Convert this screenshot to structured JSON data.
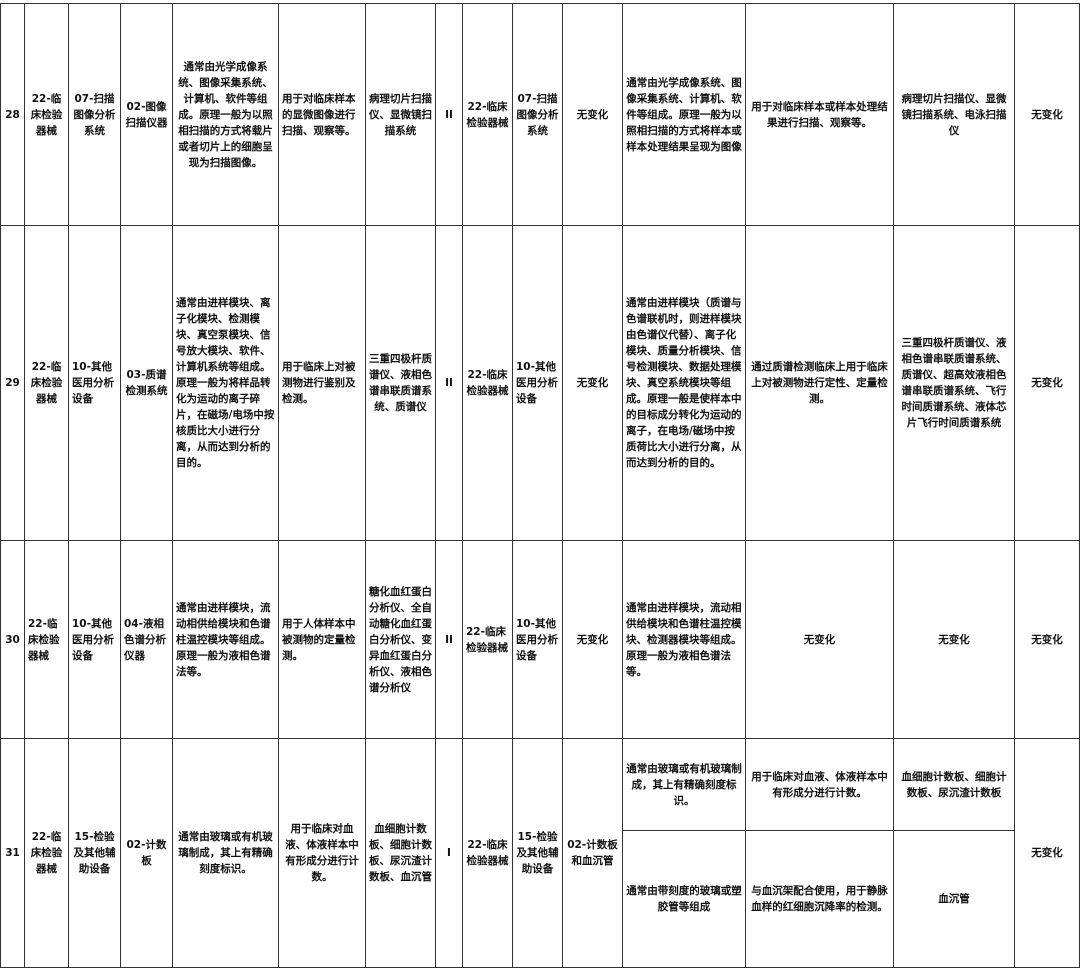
{
  "rows": [
    {
      "no": "28",
      "cat": "22-临床检验器械",
      "sub": "07-扫描图像分析系统",
      "item": "02-图像扫描仪器",
      "desc": "通常由光学成像系统、图像采集系统、计算机、软件等组成。原理一般为以照相扫描的方式将载片或者切片上的细胞呈现为扫描图像。",
      "use": "用于对临床样本的显微图像进行扫描、观察等。",
      "examples": "病理切片扫描仪、显微镜扫描系统",
      "class": "II",
      "new_cat": "22-临床检验器械",
      "new_sub": "07-扫描图像分析系统",
      "new_item": "无变化",
      "new_desc": "通常由光学成像系统、图像采集系统、计算机、软件等组成。原理一般为以照相扫描的方式将样本或样本处理结果呈现为图像",
      "new_use": "用于对临床样本或样本处理结果进行扫描、观察等。",
      "new_examples": "病理切片扫描仪、显微镜扫描系统、电泳扫描仪",
      "new_class": "无变化"
    },
    {
      "no": "29",
      "cat": "22-临床检验器械",
      "sub": "10-其他医用分析设备",
      "item": "03-质谱检测系统",
      "desc": "通常由进样模块、离子化模块、检测模块、真空泵模块、信号放大模块、软件、计算机系统等组成。原理一般为将样品转化为运动的离子碎片，在磁场/电场中按核质比大小进行分离，从而达到分析的目的。",
      "use": "用于临床上对被测物进行鉴别及检测。",
      "examples": "三重四极杆质谱仪、液相色谱串联质谱系统、质谱仪",
      "class": "II",
      "new_cat": "22-临床检验器械",
      "new_sub": "10-其他医用分析设备",
      "new_item": "无变化",
      "new_desc": "通常由进样模块（质谱与色谱联机时，则进样模块由色谱仪代替）、离子化模块、质量分析模块、信号检测模块、数据处理模块、真空系统模块等组成。原理一般是使样本中的目标成分转化为运动的离子，在电场/磁场中按质荷比大小进行分离，从而达到分析的目的。",
      "new_use": "通过质谱检测临床上用于临床上对被测物进行定性、定量检测。",
      "new_examples": "三重四极杆质谱仪、液相色谱串联质谱系统、质谱仪、超高效液相色谱串联质谱系统、飞行时间质谱系统、液体芯片飞行时间质谱系统",
      "new_class": "无变化"
    },
    {
      "no": "30",
      "cat": "22-临床检验器械",
      "sub": "10-其他医用分析设备",
      "item": "04-液相色谱分析仪器",
      "desc": "通常由进样模块，流动相供给模块和色谱柱温控模块等组成。原理一般为液相色谱法等。",
      "use": "用于人体样本中被测物的定量检测。",
      "examples": "糖化血红蛋白分析仪、全自动糖化血红蛋白分析仪、变异血红蛋白分析仪、液相色谱分析仪",
      "class": "II",
      "new_cat": "22-临床检验器械",
      "new_sub": "10-其他医用分析设备",
      "new_item": "无变化",
      "new_desc": "通常由进样模块，流动相供给模块和色谱柱温控模块、检测器模块等组成。原理一般为液相色谱法等。",
      "new_use": "无变化",
      "new_examples": "无变化",
      "new_class": "无变化"
    },
    {
      "no": "31",
      "cat": "22-临床检验器械",
      "sub": "15-检验及其他辅助设备",
      "item": "02-计数板",
      "desc": "通常由玻璃或有机玻璃制成，其上有精确刻度标识。",
      "use": "用于临床对血液、体液样本中有形成分进行计数。",
      "examples": "血细胞计数板、细胞计数板、尿沉渣计数板、血沉管",
      "class": "I",
      "new_cat": "22-临床检验器械",
      "new_sub": "15-检验及其他辅助设备",
      "new_item": "02-计数板和血沉管",
      "new_desc": "通常由玻璃或有机玻璃制成，其上有精确刻度标识。",
      "new_use": "用于临床对血液、体液样本中有形成分进行计数。",
      "new_examples": "血细胞计数板、细胞计数板、尿沉渣计数板",
      "new_desc_2": "通常由带刻度的玻璃或塑胶管等组成",
      "new_use_2": "与血沉架配合使用，用于静脉血样的红细胞沉降率的检测。",
      "new_examples_2": "血沉管",
      "new_class": "无变化"
    }
  ]
}
